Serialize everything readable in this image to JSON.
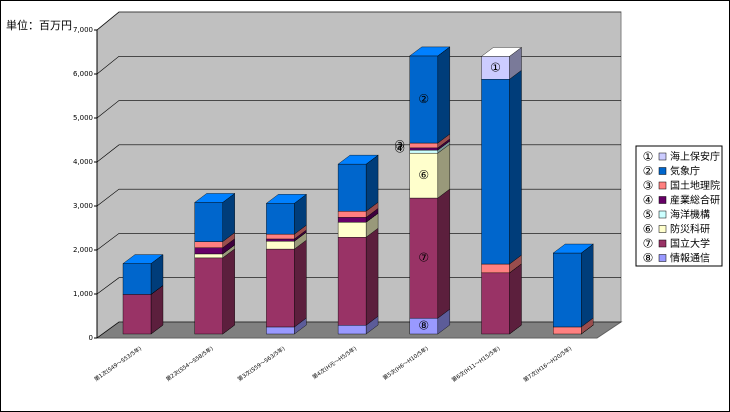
{
  "chart_data": {
    "type": "bar3d_stacked",
    "unit_label": "単位：百万円",
    "categories": [
      "第1次(S49～S53/5年)",
      "第2次(S54～S58/5年)",
      "第3次(S59～S63/5年)",
      "第4次(H元～H5/5年)",
      "第5次(H6～H10/5年)",
      "第6次(H11～H15/5年)",
      "第7次(H16～H20/5年)"
    ],
    "ylim": [
      0,
      7000
    ],
    "yticks": [
      0,
      {
        "value": 1000,
        "label": "1,000"
      },
      {
        "value": 2000,
        "label": "2,000"
      },
      {
        "value": 3000,
        "label": "3,000"
      },
      {
        "value": 4000,
        "label": "4,000"
      },
      {
        "value": 5000,
        "label": "5,000"
      },
      {
        "value": 6000,
        "label": "6,000"
      },
      {
        "value": 7000,
        "label": "7,000"
      }
    ],
    "grid": true,
    "legend": "right",
    "series": [
      {
        "marker": "①",
        "name": "海上保安庁",
        "color": "#ccccff",
        "values": [
          0,
          0,
          0,
          0,
          0,
          520,
          0
        ]
      },
      {
        "marker": "②",
        "name": "気象庁",
        "color": "#0066cc",
        "values": [
          700,
          890,
          700,
          1070,
          1980,
          4200,
          1680
        ]
      },
      {
        "marker": "③",
        "name": "国土地理院",
        "color": "#ff8080",
        "values": [
          0,
          140,
          110,
          140,
          110,
          200,
          160
        ]
      },
      {
        "marker": "④",
        "name": "産業総合研",
        "color": "#660066",
        "values": [
          0,
          140,
          50,
          110,
          50,
          0,
          0
        ]
      },
      {
        "marker": "⑤",
        "name": "海洋機構",
        "color": "#ccffff",
        "values": [
          0,
          0,
          0,
          0,
          70,
          0,
          0
        ]
      },
      {
        "marker": "⑥",
        "name": "防災科研",
        "color": "#ffffcc",
        "values": [
          0,
          90,
          180,
          340,
          1020,
          0,
          0
        ]
      },
      {
        "marker": "⑦",
        "name": "国立大学",
        "color": "#993366",
        "values": [
          900,
          1730,
          1770,
          2000,
          2730,
          1390,
          0
        ]
      },
      {
        "marker": "⑧",
        "name": "情報通信",
        "color": "#9999ff",
        "values": [
          0,
          0,
          160,
          200,
          360,
          0,
          0
        ]
      }
    ]
  }
}
